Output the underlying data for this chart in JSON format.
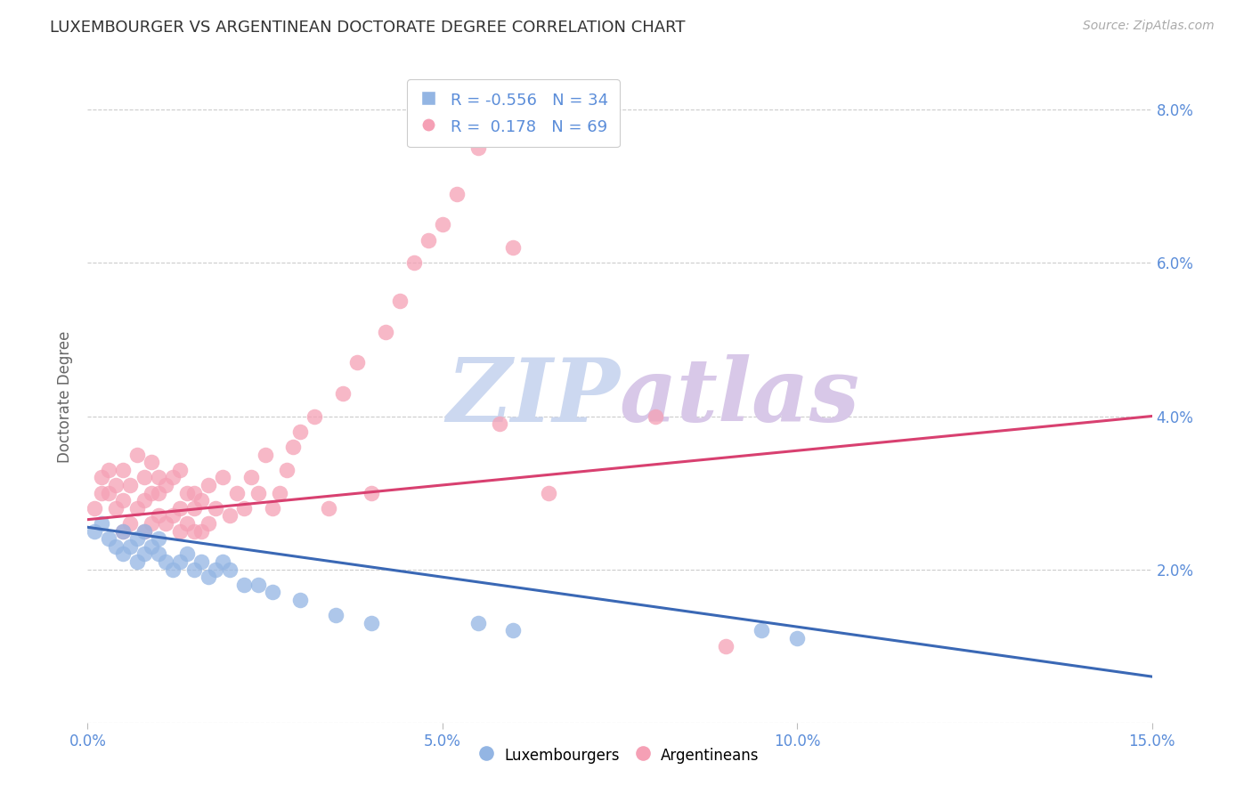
{
  "title": "LUXEMBOURGER VS ARGENTINEAN DOCTORATE DEGREE CORRELATION CHART",
  "source": "Source: ZipAtlas.com",
  "ylabel": "Doctorate Degree",
  "xlim": [
    0.0,
    0.15
  ],
  "ylim": [
    0.0,
    0.085
  ],
  "xticks": [
    0.0,
    0.05,
    0.1,
    0.15
  ],
  "xtick_labels": [
    "0.0%",
    "5.0%",
    "10.0%",
    "15.0%"
  ],
  "yticks": [
    0.0,
    0.02,
    0.04,
    0.06,
    0.08
  ],
  "ytick_labels": [
    "",
    "2.0%",
    "4.0%",
    "6.0%",
    "8.0%"
  ],
  "legend_blue_label": "Luxembourgers",
  "legend_pink_label": "Argentineans",
  "R_blue": -0.556,
  "N_blue": 34,
  "R_pink": 0.178,
  "N_pink": 69,
  "blue_color": "#93b5e3",
  "pink_color": "#f5a0b5",
  "blue_line_color": "#3a68b5",
  "pink_line_color": "#d84070",
  "tick_color": "#5b8dd9",
  "watermark_zip_color": "#ccd8f0",
  "watermark_atlas_color": "#d8c8e8",
  "background_color": "#ffffff",
  "grid_color": "#cccccc",
  "blue_scatter_x": [
    0.001,
    0.002,
    0.003,
    0.004,
    0.005,
    0.005,
    0.006,
    0.007,
    0.007,
    0.008,
    0.008,
    0.009,
    0.01,
    0.01,
    0.011,
    0.012,
    0.013,
    0.014,
    0.015,
    0.016,
    0.017,
    0.018,
    0.019,
    0.02,
    0.022,
    0.024,
    0.026,
    0.03,
    0.035,
    0.04,
    0.055,
    0.06,
    0.095,
    0.1
  ],
  "blue_scatter_y": [
    0.025,
    0.026,
    0.024,
    0.023,
    0.025,
    0.022,
    0.023,
    0.024,
    0.021,
    0.022,
    0.025,
    0.023,
    0.022,
    0.024,
    0.021,
    0.02,
    0.021,
    0.022,
    0.02,
    0.021,
    0.019,
    0.02,
    0.021,
    0.02,
    0.018,
    0.018,
    0.017,
    0.016,
    0.014,
    0.013,
    0.013,
    0.012,
    0.012,
    0.011
  ],
  "pink_scatter_x": [
    0.001,
    0.002,
    0.002,
    0.003,
    0.003,
    0.004,
    0.004,
    0.005,
    0.005,
    0.005,
    0.006,
    0.006,
    0.007,
    0.007,
    0.008,
    0.008,
    0.008,
    0.009,
    0.009,
    0.009,
    0.01,
    0.01,
    0.01,
    0.011,
    0.011,
    0.012,
    0.012,
    0.013,
    0.013,
    0.013,
    0.014,
    0.014,
    0.015,
    0.015,
    0.015,
    0.016,
    0.016,
    0.017,
    0.017,
    0.018,
    0.019,
    0.02,
    0.021,
    0.022,
    0.023,
    0.024,
    0.025,
    0.026,
    0.027,
    0.028,
    0.029,
    0.03,
    0.032,
    0.034,
    0.036,
    0.038,
    0.04,
    0.042,
    0.044,
    0.046,
    0.048,
    0.05,
    0.052,
    0.055,
    0.058,
    0.06,
    0.065,
    0.08,
    0.09
  ],
  "pink_scatter_y": [
    0.028,
    0.03,
    0.032,
    0.03,
    0.033,
    0.028,
    0.031,
    0.025,
    0.029,
    0.033,
    0.026,
    0.031,
    0.028,
    0.035,
    0.025,
    0.029,
    0.032,
    0.026,
    0.03,
    0.034,
    0.027,
    0.03,
    0.032,
    0.026,
    0.031,
    0.027,
    0.032,
    0.025,
    0.028,
    0.033,
    0.026,
    0.03,
    0.025,
    0.028,
    0.03,
    0.025,
    0.029,
    0.026,
    0.031,
    0.028,
    0.032,
    0.027,
    0.03,
    0.028,
    0.032,
    0.03,
    0.035,
    0.028,
    0.03,
    0.033,
    0.036,
    0.038,
    0.04,
    0.028,
    0.043,
    0.047,
    0.03,
    0.051,
    0.055,
    0.06,
    0.063,
    0.065,
    0.069,
    0.075,
    0.039,
    0.062,
    0.03,
    0.04,
    0.01
  ],
  "blue_trend_x": [
    0.0,
    0.15
  ],
  "blue_trend_y": [
    0.0255,
    0.006
  ],
  "pink_trend_x": [
    0.0,
    0.15
  ],
  "pink_trend_y": [
    0.0265,
    0.04
  ]
}
